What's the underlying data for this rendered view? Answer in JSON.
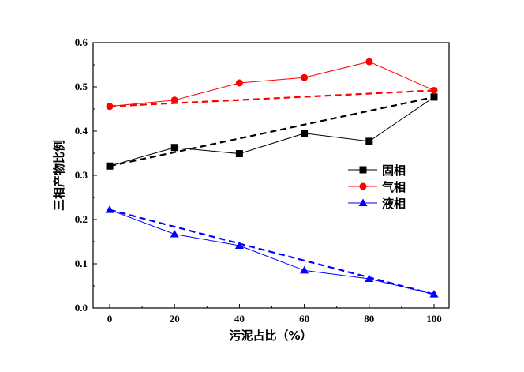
{
  "chart_data": {
    "type": "line",
    "title": "",
    "xlabel": "污泥占比（%）",
    "ylabel": "三相产物比例",
    "x": [
      0,
      20,
      40,
      60,
      80,
      100
    ],
    "xlim": [
      0,
      100
    ],
    "ylim": [
      0,
      0.6
    ],
    "xticks": [
      "0",
      "20",
      "40",
      "60",
      "80",
      "100"
    ],
    "yticks": [
      "0.0",
      "0.1",
      "0.2",
      "0.3",
      "0.4",
      "0.5",
      "0.6"
    ],
    "grid": false,
    "legend_position": "right-middle",
    "series": [
      {
        "name": "固相",
        "color": "#000000",
        "marker": "square",
        "values": [
          0.321,
          0.363,
          0.349,
          0.395,
          0.377,
          0.477
        ]
      },
      {
        "name": "气相",
        "color": "#ff0000",
        "marker": "circle",
        "values": [
          0.456,
          0.47,
          0.509,
          0.521,
          0.557,
          0.492
        ]
      },
      {
        "name": "液相",
        "color": "#0000ff",
        "marker": "triangle",
        "values": [
          0.222,
          0.167,
          0.141,
          0.085,
          0.066,
          0.031
        ]
      }
    ],
    "dashed_series": [
      {
        "color": "#000000",
        "x": [
          0,
          100
        ],
        "values": [
          0.321,
          0.477
        ]
      },
      {
        "color": "#ff0000",
        "x": [
          0,
          100
        ],
        "values": [
          0.456,
          0.492
        ]
      },
      {
        "color": "#0000ff",
        "x": [
          0,
          100
        ],
        "values": [
          0.222,
          0.031
        ]
      }
    ]
  }
}
